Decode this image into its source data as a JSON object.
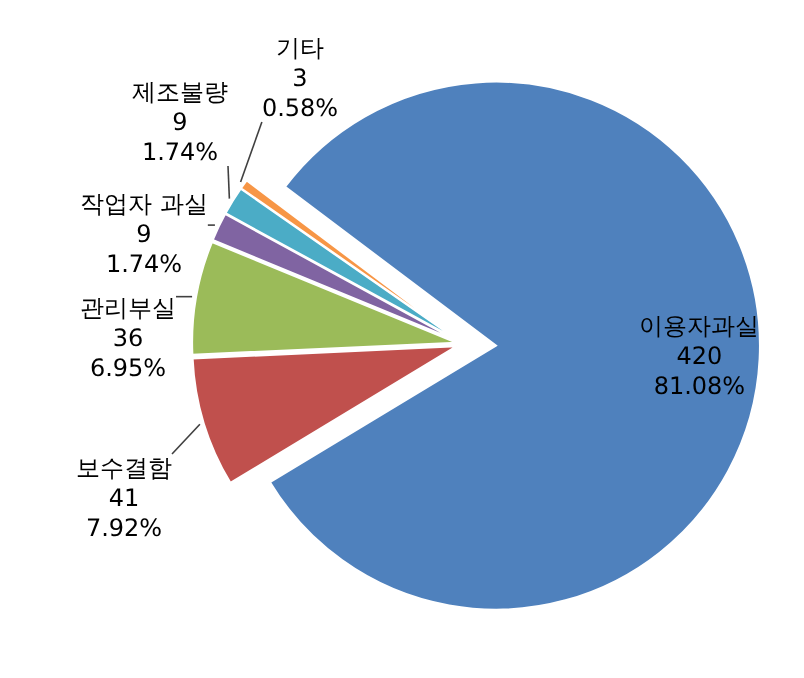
{
  "chart_data": {
    "type": "pie",
    "categories": [
      "이용자과실",
      "보수결함",
      "관리부실",
      "작업자 과실",
      "제조불량",
      "기타"
    ],
    "values": [
      81.08,
      7.92,
      6.95,
      1.74,
      1.74,
      0.58
    ],
    "colors": [
      "#4f81bd",
      "#c0504d",
      "#9bbb59",
      "#8064a2",
      "#4bacc6",
      "#f79646"
    ],
    "value_labels": [
      "420\n81.08%",
      "41\n7.92%",
      "36\n6.95%",
      "9\n1.74%",
      "9\n1.74%",
      "3\n0.58%"
    ]
  }
}
